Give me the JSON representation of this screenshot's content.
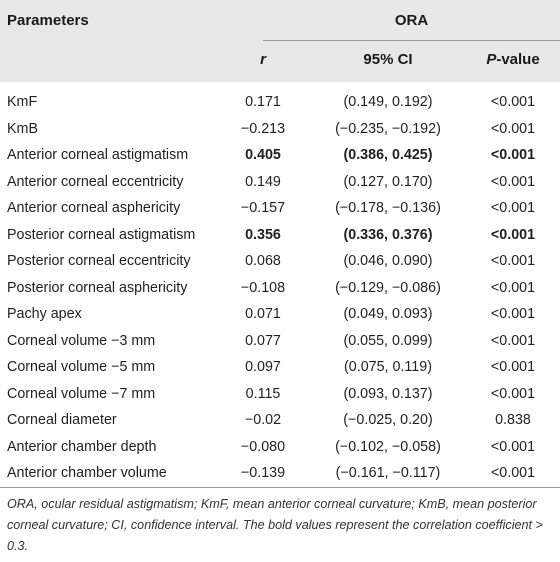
{
  "header": {
    "parameters": "Parameters",
    "group": "ORA",
    "col_r": "r",
    "col_ci": "95% CI",
    "col_p_italic": "P",
    "col_p_rest": "-value"
  },
  "rows": [
    {
      "parameter": "KmF",
      "r": "0.171",
      "ci": "(0.149, 0.192)",
      "p": "<0.001",
      "bold": false
    },
    {
      "parameter": "KmB",
      "r": "−0.213",
      "ci": "(−0.235, −0.192)",
      "p": "<0.001",
      "bold": false
    },
    {
      "parameter": "Anterior corneal astigmatism",
      "r": "0.405",
      "ci": "(0.386, 0.425)",
      "p": "<0.001",
      "bold": true
    },
    {
      "parameter": "Anterior corneal eccentricity",
      "r": "0.149",
      "ci": "(0.127, 0.170)",
      "p": "<0.001",
      "bold": false
    },
    {
      "parameter": "Anterior corneal asphericity",
      "r": "−0.157",
      "ci": "(−0.178, −0.136)",
      "p": "<0.001",
      "bold": false
    },
    {
      "parameter": "Posterior corneal astigmatism",
      "r": "0.356",
      "ci": "(0.336, 0.376)",
      "p": "<0.001",
      "bold": true
    },
    {
      "parameter": "Posterior corneal eccentricity",
      "r": "0.068",
      "ci": "(0.046, 0.090)",
      "p": "<0.001",
      "bold": false
    },
    {
      "parameter": "Posterior corneal asphericity",
      "r": "−0.108",
      "ci": "(−0.129, −0.086)",
      "p": "<0.001",
      "bold": false
    },
    {
      "parameter": "Pachy apex",
      "r": "0.071",
      "ci": "(0.049, 0.093)",
      "p": "<0.001",
      "bold": false
    },
    {
      "parameter": "Corneal volume −3 mm",
      "r": "0.077",
      "ci": "(0.055, 0.099)",
      "p": "<0.001",
      "bold": false
    },
    {
      "parameter": "Corneal volume −5 mm",
      "r": "0.097",
      "ci": "(0.075, 0.119)",
      "p": "<0.001",
      "bold": false
    },
    {
      "parameter": "Corneal volume −7 mm",
      "r": "0.115",
      "ci": "(0.093, 0.137)",
      "p": "<0.001",
      "bold": false
    },
    {
      "parameter": "Corneal diameter",
      "r": "−0.02",
      "ci": "(−0.025, 0.20)",
      "p": "0.838",
      "bold": false
    },
    {
      "parameter": "Anterior chamber depth",
      "r": "−0.080",
      "ci": "(−0.102, −0.058)",
      "p": "<0.001",
      "bold": false
    },
    {
      "parameter": "Anterior chamber volume",
      "r": "−0.139",
      "ci": "(−0.161, −0.117)",
      "p": "<0.001",
      "bold": false
    }
  ],
  "footnote": "ORA, ocular residual astigmatism; KmF, mean anterior corneal curvature; KmB, mean posterior corneal curvature; CI, confidence interval. The bold values represent the correlation coefficient > 0.3."
}
